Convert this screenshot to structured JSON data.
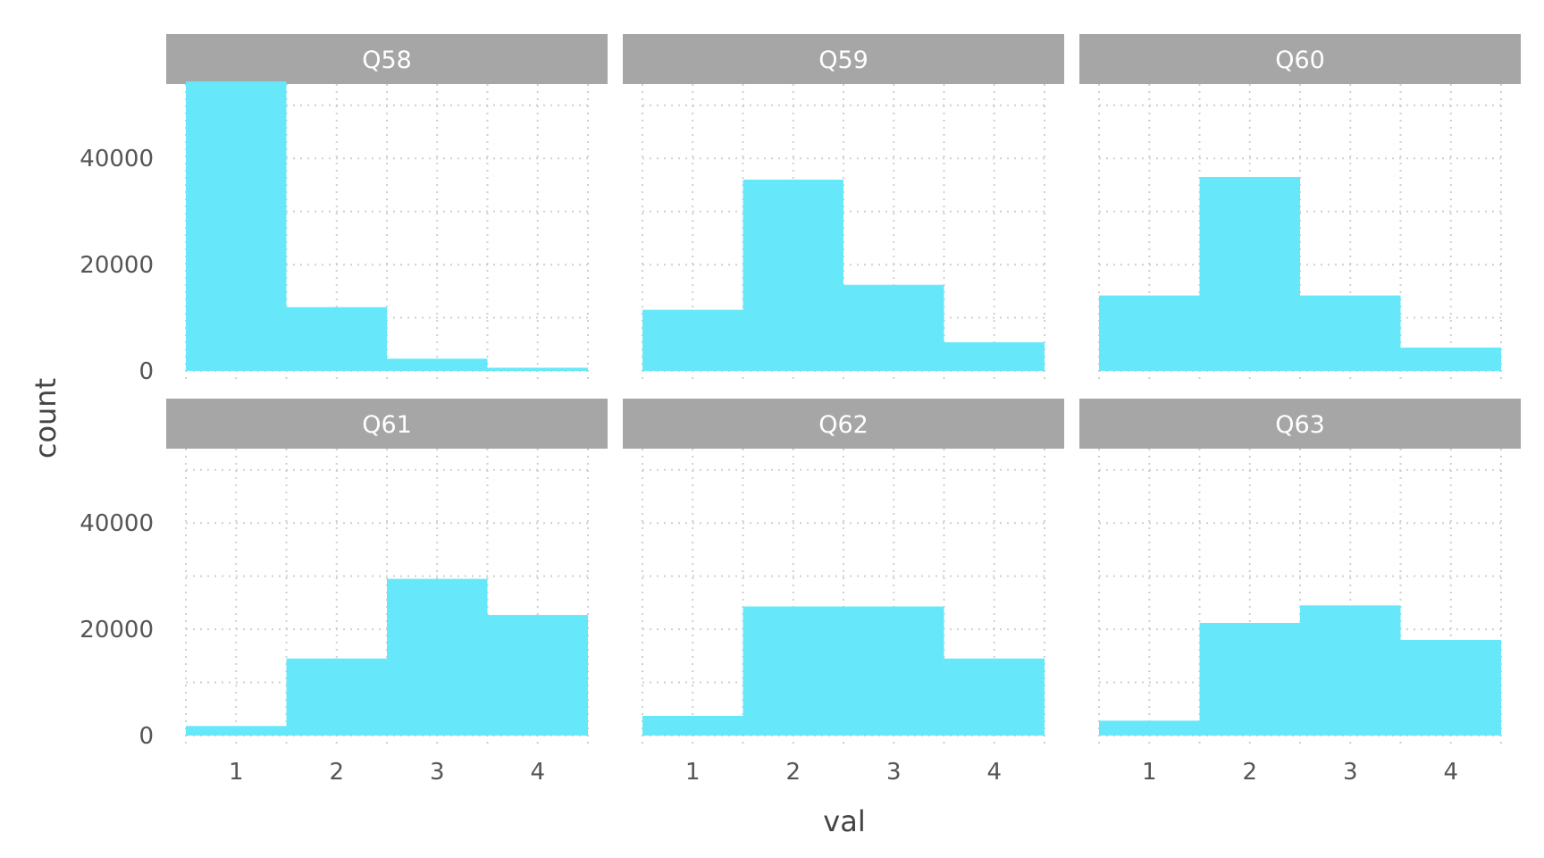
{
  "chart_data": {
    "type": "bar",
    "xlabel": "val",
    "ylabel": "count",
    "ylim": [
      0,
      54000
    ],
    "y_ticks": [
      0,
      20000,
      40000
    ],
    "x_ticks": [
      1,
      2,
      3,
      4
    ],
    "x_tick_labels": [
      "1",
      "2",
      "3",
      "4"
    ],
    "y_tick_labels": [
      "0",
      "20000",
      "40000"
    ],
    "grid": true,
    "bar_color": "#66e8fa",
    "strip_color": "#a6a6a6",
    "facets": [
      {
        "label": "Q58",
        "categories": [
          1,
          2,
          3,
          4
        ],
        "values": [
          54500,
          12000,
          2300,
          600
        ]
      },
      {
        "label": "Q59",
        "categories": [
          1,
          2,
          3,
          4
        ],
        "values": [
          11500,
          36000,
          16200,
          5400
        ]
      },
      {
        "label": "Q60",
        "categories": [
          1,
          2,
          3,
          4
        ],
        "values": [
          14200,
          36500,
          14200,
          4400
        ]
      },
      {
        "label": "Q61",
        "categories": [
          1,
          2,
          3,
          4
        ],
        "values": [
          1800,
          14500,
          29500,
          22700
        ]
      },
      {
        "label": "Q62",
        "categories": [
          1,
          2,
          3,
          4
        ],
        "values": [
          3700,
          24300,
          24300,
          14500
        ]
      },
      {
        "label": "Q63",
        "categories": [
          1,
          2,
          3,
          4
        ],
        "values": [
          2800,
          21200,
          24500,
          18000
        ]
      }
    ]
  }
}
